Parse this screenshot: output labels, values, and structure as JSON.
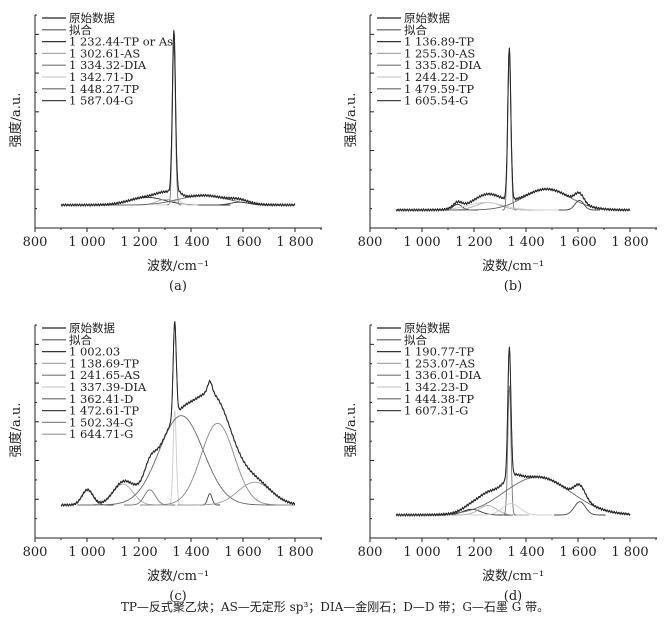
{
  "caption": "TP—反式聚乙炔；AS—无定形 sp³；DIA—金刚石；D—D 带；G—石墨 G 带。",
  "chart_data": [
    {
      "type": "line",
      "panel_label": "(a)",
      "xlabel": "波数/cm⁻¹",
      "ylabel": "强度/a.u.",
      "xlim": [
        800,
        1900
      ],
      "xticks": [
        "800",
        "1 000",
        "1 200",
        "1 400",
        "1 600",
        "1 800"
      ],
      "ylim": [
        0,
        1
      ],
      "legend": [
        "原始数据",
        "拟合",
        "1 232.44-TP or As",
        "1 302.61-AS",
        "1 334.32-DIA",
        "1 342.71-D",
        "1 448.27-TP",
        "1 587.04-G"
      ],
      "legend_placement": "top-left",
      "peaks": [
        {
          "center": 1232.44,
          "height": 0.04,
          "fwhm": 160
        },
        {
          "center": 1302.61,
          "height": 0.03,
          "fwhm": 80
        },
        {
          "center": 1334.32,
          "height": 0.84,
          "fwhm": 14
        },
        {
          "center": 1342.71,
          "height": 0.03,
          "fwhm": 40
        },
        {
          "center": 1448.27,
          "height": 0.05,
          "fwhm": 220
        },
        {
          "center": 1587.04,
          "height": 0.015,
          "fwhm": 80
        }
      ]
    },
    {
      "type": "line",
      "panel_label": "(b)",
      "xlabel": "波数/cm⁻¹",
      "ylabel": "强度/a.u.",
      "xlim": [
        800,
        1900
      ],
      "xticks": [
        "800",
        "1 000",
        "1 200",
        "1 400",
        "1 600",
        "1 800"
      ],
      "ylim": [
        0,
        1
      ],
      "legend": [
        "原始数据",
        "拟合",
        "1 136.89-TP",
        "1 255.30-AS",
        "1 335.82-DIA",
        "1 244.22-D",
        "1 479.59-TP",
        "1 605.54-G"
      ],
      "legend_placement": "top-left",
      "peaks": [
        {
          "center": 1136.89,
          "height": 0.03,
          "fwhm": 40
        },
        {
          "center": 1255.3,
          "height": 0.04,
          "fwhm": 110
        },
        {
          "center": 1335.82,
          "height": 0.8,
          "fwhm": 14
        },
        {
          "center": 1244.22,
          "height": 0.04,
          "fwhm": 160
        },
        {
          "center": 1479.59,
          "height": 0.11,
          "fwhm": 210
        },
        {
          "center": 1605.54,
          "height": 0.05,
          "fwhm": 40
        }
      ]
    },
    {
      "type": "line",
      "panel_label": "(c)",
      "xlabel": "波数/cm⁻¹",
      "ylabel": "强度/a.u.",
      "xlim": [
        800,
        1900
      ],
      "xticks": [
        "800",
        "1 000",
        "1 200",
        "1 400",
        "1 600",
        "1 800"
      ],
      "ylim": [
        0,
        1
      ],
      "legend": [
        "原始数据",
        "拟合",
        "1 002.03",
        "1 138.69-TP",
        "1 241.65-AS",
        "1 337.39-DIA",
        "1 362.41-D",
        "1 472.61-TP",
        "1 502.34-G",
        "1 644.71-G"
      ],
      "legend_placement": "top-left",
      "peaks": [
        {
          "center": 1002.03,
          "height": 0.08,
          "fwhm": 50
        },
        {
          "center": 1138.69,
          "height": 0.11,
          "fwhm": 90
        },
        {
          "center": 1241.65,
          "height": 0.08,
          "fwhm": 50
        },
        {
          "center": 1337.39,
          "height": 0.5,
          "fwhm": 14
        },
        {
          "center": 1362.41,
          "height": 0.47,
          "fwhm": 200
        },
        {
          "center": 1472.61,
          "height": 0.06,
          "fwhm": 20
        },
        {
          "center": 1502.34,
          "height": 0.43,
          "fwhm": 150
        },
        {
          "center": 1644.71,
          "height": 0.12,
          "fwhm": 150
        }
      ]
    },
    {
      "type": "line",
      "panel_label": "(d)",
      "xlabel": "波数/cm⁻¹",
      "ylabel": "强度/a.u.",
      "xlim": [
        800,
        1900
      ],
      "xticks": [
        "800",
        "1 000",
        "1 200",
        "1 400",
        "1 600",
        "1 800"
      ],
      "ylim": [
        0,
        1
      ],
      "legend": [
        "原始数据",
        "拟合",
        "1 190.77-TP",
        "1 253.07-AS",
        "1 336.01-DIA",
        "1 342.23-D",
        "1 444.38-TP",
        "1 607.31-G"
      ],
      "legend_placement": "top-left",
      "peaks": [
        {
          "center": 1190.77,
          "height": 0.03,
          "fwhm": 80
        },
        {
          "center": 1253.07,
          "height": 0.05,
          "fwhm": 80
        },
        {
          "center": 1336.01,
          "height": 0.68,
          "fwhm": 14
        },
        {
          "center": 1342.23,
          "height": 0.06,
          "fwhm": 80
        },
        {
          "center": 1444.38,
          "height": 0.2,
          "fwhm": 300
        },
        {
          "center": 1607.31,
          "height": 0.07,
          "fwhm": 50
        }
      ]
    }
  ]
}
